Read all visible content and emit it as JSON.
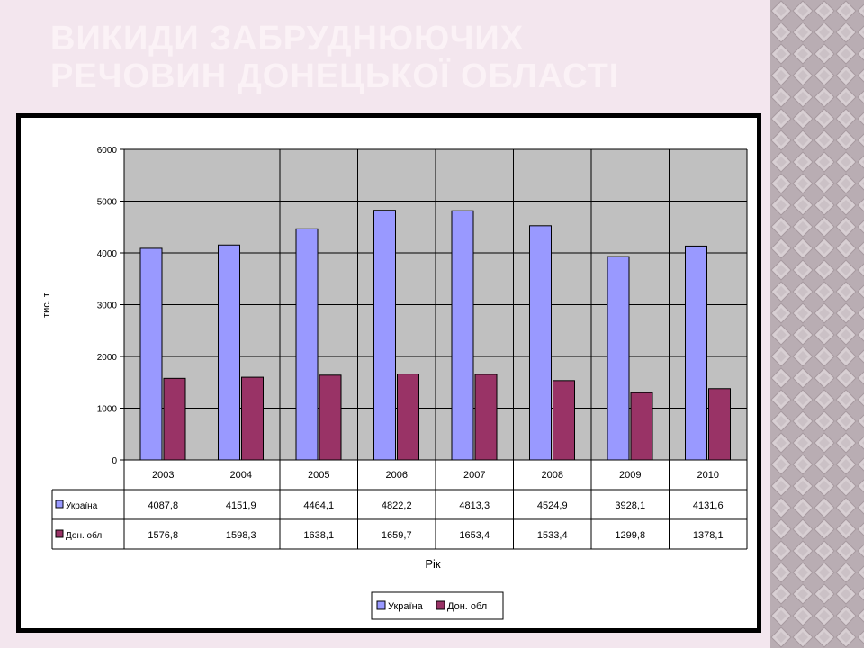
{
  "slide": {
    "title_line1": "Викиди забруднюючих",
    "title_line2": "речовин Донецької області"
  },
  "colors": {
    "background": "#f3e6ee",
    "title": "#fbf2f6",
    "pattern": "#c7bcc1",
    "plot_area": "#c0c0c0",
    "series_ukraine": "#9999ff",
    "series_donetsk": "#993366"
  },
  "chart_data": {
    "type": "bar",
    "title": "",
    "xlabel": "Рік",
    "ylabel": "тис. т",
    "ylim": [
      0,
      6000
    ],
    "yticks": [
      0,
      1000,
      2000,
      3000,
      4000,
      5000,
      6000
    ],
    "categories": [
      "2003",
      "2004",
      "2005",
      "2006",
      "2007",
      "2008",
      "2009",
      "2010"
    ],
    "series": [
      {
        "name": "Україна",
        "values": [
          4087.8,
          4151.9,
          4464.1,
          4822.2,
          4813.3,
          4524.9,
          3928.1,
          4131.6
        ],
        "labels": [
          "4087,8",
          "4151,9",
          "4464,1",
          "4822,2",
          "4813,3",
          "4524,9",
          "3928,1",
          "4131,6"
        ]
      },
      {
        "name": "Дон. обл",
        "values": [
          1576.8,
          1598.3,
          1638.1,
          1659.7,
          1653.4,
          1533.4,
          1299.8,
          1378.1
        ],
        "labels": [
          "1576,8",
          "1598,3",
          "1638,1",
          "1659,7",
          "1653,4",
          "1533,4",
          "1299,8",
          "1378,1"
        ]
      }
    ],
    "grid": true,
    "data_table": true,
    "legend_position": "bottom"
  }
}
